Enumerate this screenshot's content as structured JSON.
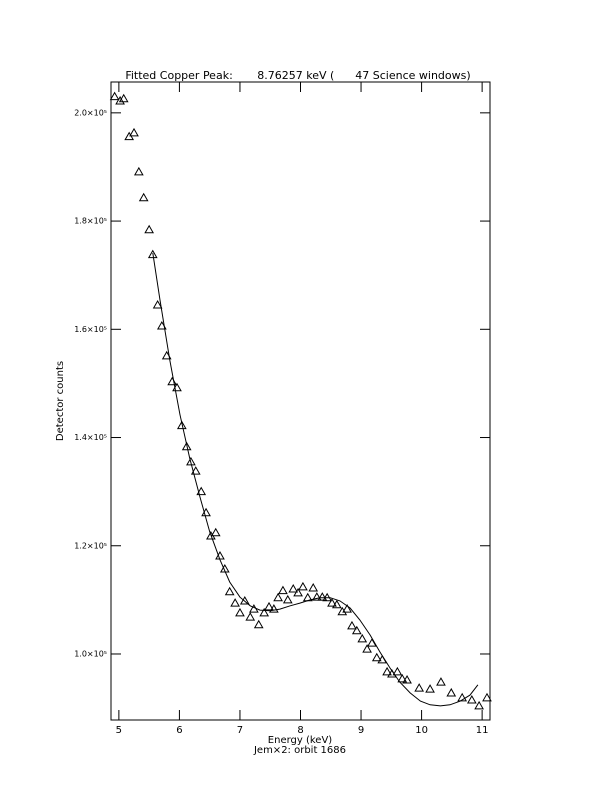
{
  "chart_data": {
    "type": "scatter",
    "title": "Fitted Copper Peak:       8.76257 keV (      47 Science windows)",
    "x_label": "Energy (keV)",
    "x_label_2": "Jem×2: orbit 1686",
    "y_label": "Detector counts",
    "xlim": [
      4.87,
      11.13
    ],
    "ylim": [
      87800,
      205700
    ],
    "xticks": [
      5,
      6,
      7,
      8,
      9,
      10,
      11
    ],
    "yticks": [
      {
        "value": 100000,
        "label": "1.0×10⁵"
      },
      {
        "value": 120000,
        "label": "1.2×10⁵"
      },
      {
        "value": 140000,
        "label": "1.4×10⁵"
      },
      {
        "value": 160000,
        "label": "1.6×10⁵"
      },
      {
        "value": 180000,
        "label": "1.8×10⁵"
      },
      {
        "value": 200000,
        "label": "2.0×10⁵"
      }
    ],
    "color": "#000000",
    "points": {
      "marker": "triangle",
      "x": [
        4.93,
        5.02,
        5.08,
        5.17,
        5.25,
        5.33,
        5.41,
        5.5,
        5.56,
        5.64,
        5.71,
        5.79,
        5.88,
        5.96,
        6.04,
        6.12,
        6.19,
        6.27,
        6.36,
        6.44,
        6.52,
        6.6,
        6.67,
        6.75,
        6.83,
        6.92,
        7.0,
        7.08,
        7.17,
        7.23,
        7.31,
        7.4,
        7.48,
        7.56,
        7.63,
        7.71,
        7.79,
        7.88,
        7.96,
        8.04,
        8.12,
        8.21,
        8.27,
        8.36,
        8.44,
        8.52,
        8.6,
        8.69,
        8.77,
        8.85,
        8.93,
        9.02,
        9.1,
        9.18,
        9.26,
        9.35,
        9.43,
        9.51,
        9.6,
        9.68,
        9.76,
        9.96,
        10.14,
        10.32,
        10.49,
        10.67,
        10.83,
        10.95,
        11.08
      ],
      "values": [
        203000,
        202200,
        202600,
        195600,
        196300,
        189100,
        184300,
        178400,
        173800,
        164500,
        160600,
        155100,
        150300,
        149200,
        142200,
        138300,
        135500,
        133800,
        130000,
        126100,
        121800,
        122400,
        118100,
        115700,
        111500,
        109400,
        107600,
        109800,
        106800,
        108300,
        105400,
        107600,
        108700,
        108300,
        110400,
        111700,
        110000,
        112000,
        111300,
        112400,
        110400,
        112200,
        110500,
        110500,
        110400,
        109400,
        109100,
        107800,
        108300,
        105200,
        104300,
        102800,
        100900,
        102000,
        99300,
        98900,
        96700,
        96300,
        96700,
        95400,
        95200,
        93700,
        93500,
        94800,
        92800,
        91900,
        91500,
        90400,
        91900
      ]
    },
    "fit": {
      "marker": "line",
      "x": [
        5.56,
        5.68,
        5.84,
        6.01,
        6.17,
        6.34,
        6.5,
        6.67,
        6.83,
        7.0,
        7.17,
        7.33,
        7.5,
        7.66,
        7.83,
        7.99,
        8.16,
        8.32,
        8.49,
        8.65,
        8.82,
        8.98,
        9.15,
        9.31,
        9.48,
        9.64,
        9.81,
        9.98,
        10.14,
        10.31,
        10.47,
        10.64,
        10.8,
        10.93
      ],
      "values": [
        174100,
        165400,
        154400,
        144200,
        136200,
        129000,
        122600,
        117400,
        113300,
        110500,
        108900,
        108100,
        108000,
        108300,
        108900,
        109400,
        110000,
        110400,
        110400,
        109800,
        108500,
        106300,
        103500,
        100400,
        97400,
        94800,
        92800,
        91300,
        90600,
        90400,
        90600,
        91300,
        92400,
        94300
      ]
    }
  }
}
